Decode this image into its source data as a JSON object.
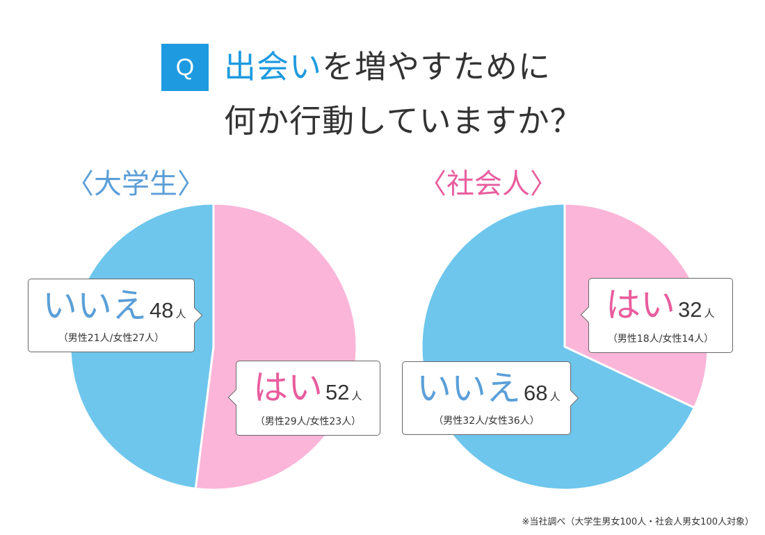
{
  "question": {
    "badge": "Q",
    "line1_accent": "出会い",
    "line1_rest": "を増やすために",
    "line2": "何か行動していますか？"
  },
  "colors": {
    "yes": "#fbb5d8",
    "no": "#6ec6ec",
    "accent": "#1e9be0",
    "blue_text": "#5b9fd8",
    "pink_text": "#e85d9e"
  },
  "chart_data": [
    {
      "type": "pie",
      "title": "〈大学生〉",
      "slices": [
        {
          "label": "はい",
          "value": 52,
          "unit": "人",
          "breakdown": "（男性29人/女性23人）",
          "color": "#fbb5d8"
        },
        {
          "label": "いいえ",
          "value": 48,
          "unit": "人",
          "breakdown": "（男性21人/女性27人）",
          "color": "#6ec6ec"
        }
      ]
    },
    {
      "type": "pie",
      "title": "〈社会人〉",
      "slices": [
        {
          "label": "はい",
          "value": 32,
          "unit": "人",
          "breakdown": "（男性18人/女性14人）",
          "color": "#fbb5d8"
        },
        {
          "label": "いいえ",
          "value": 68,
          "unit": "人",
          "breakdown": "（男性32人/女性36人）",
          "color": "#6ec6ec"
        }
      ]
    }
  ],
  "footnote": "※当社調べ（大学生男女100人・社会人男女100人対象）"
}
